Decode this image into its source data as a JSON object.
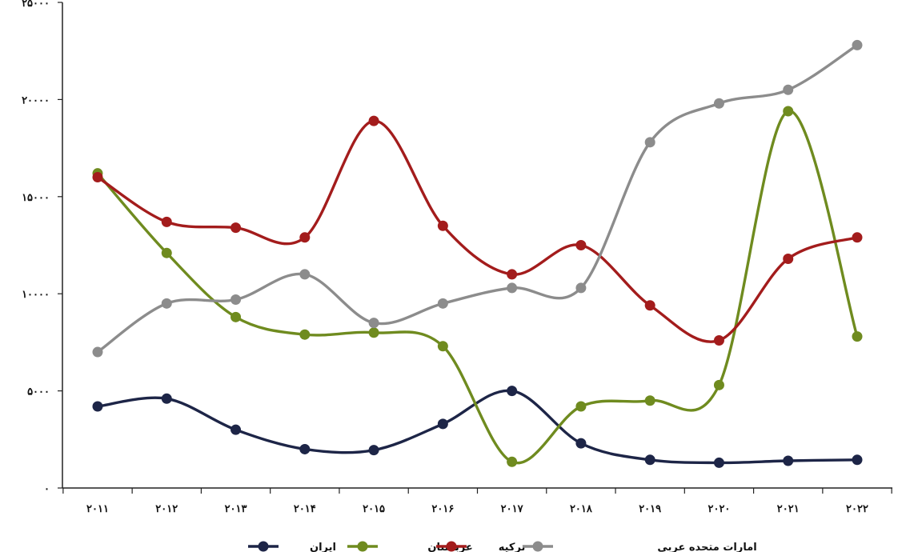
{
  "chart_data": {
    "type": "line",
    "smooth": true,
    "x": [
      "2011",
      "2012",
      "2013",
      "2014",
      "2015",
      "2016",
      "2017",
      "2018",
      "2019",
      "2020",
      "2021",
      "2022"
    ],
    "y_ticks": [
      "۰",
      "۵۰۰۰",
      "۱۰۰۰۰",
      "۱۵۰۰۰",
      "۲۰۰۰۰",
      "۲۵۰۰۰"
    ],
    "x_tick_labels": [
      "۲۰۱۱",
      "۲۰۱۲",
      "۲۰۱۳",
      "۲۰۱۴",
      "۲۰۱۵",
      "۲۰۱۶",
      "۲۰۱۷",
      "۲۰۱۸",
      "۲۰۱۹",
      "۲۰۲۰",
      "۲۰۲۱",
      "۲۰۲۲"
    ],
    "ylim": [
      0,
      25000
    ],
    "grid": false,
    "legend_position": "bottom",
    "series": [
      {
        "name": "ایران",
        "color": "#1d2547",
        "values": [
          4200,
          4600,
          3000,
          2000,
          1950,
          3300,
          5000,
          2300,
          1450,
          1300,
          1400,
          1450
        ]
      },
      {
        "name": "عربستان",
        "color": "#6f8b1f",
        "values": [
          16200,
          12100,
          8800,
          7900,
          8000,
          7300,
          1350,
          4200,
          4500,
          5300,
          19400,
          7800
        ]
      },
      {
        "name": "ترکیه",
        "color": "#a31c1c",
        "values": [
          16000,
          13700,
          13400,
          12900,
          18900,
          13500,
          11000,
          12500,
          9400,
          7600,
          11800,
          12900
        ]
      },
      {
        "name": "امارات متحده عربی",
        "color": "#8c8c8c",
        "values": [
          7000,
          9500,
          9700,
          11000,
          8500,
          9500,
          10300,
          10300,
          17800,
          19800,
          20500,
          22800
        ]
      }
    ]
  }
}
